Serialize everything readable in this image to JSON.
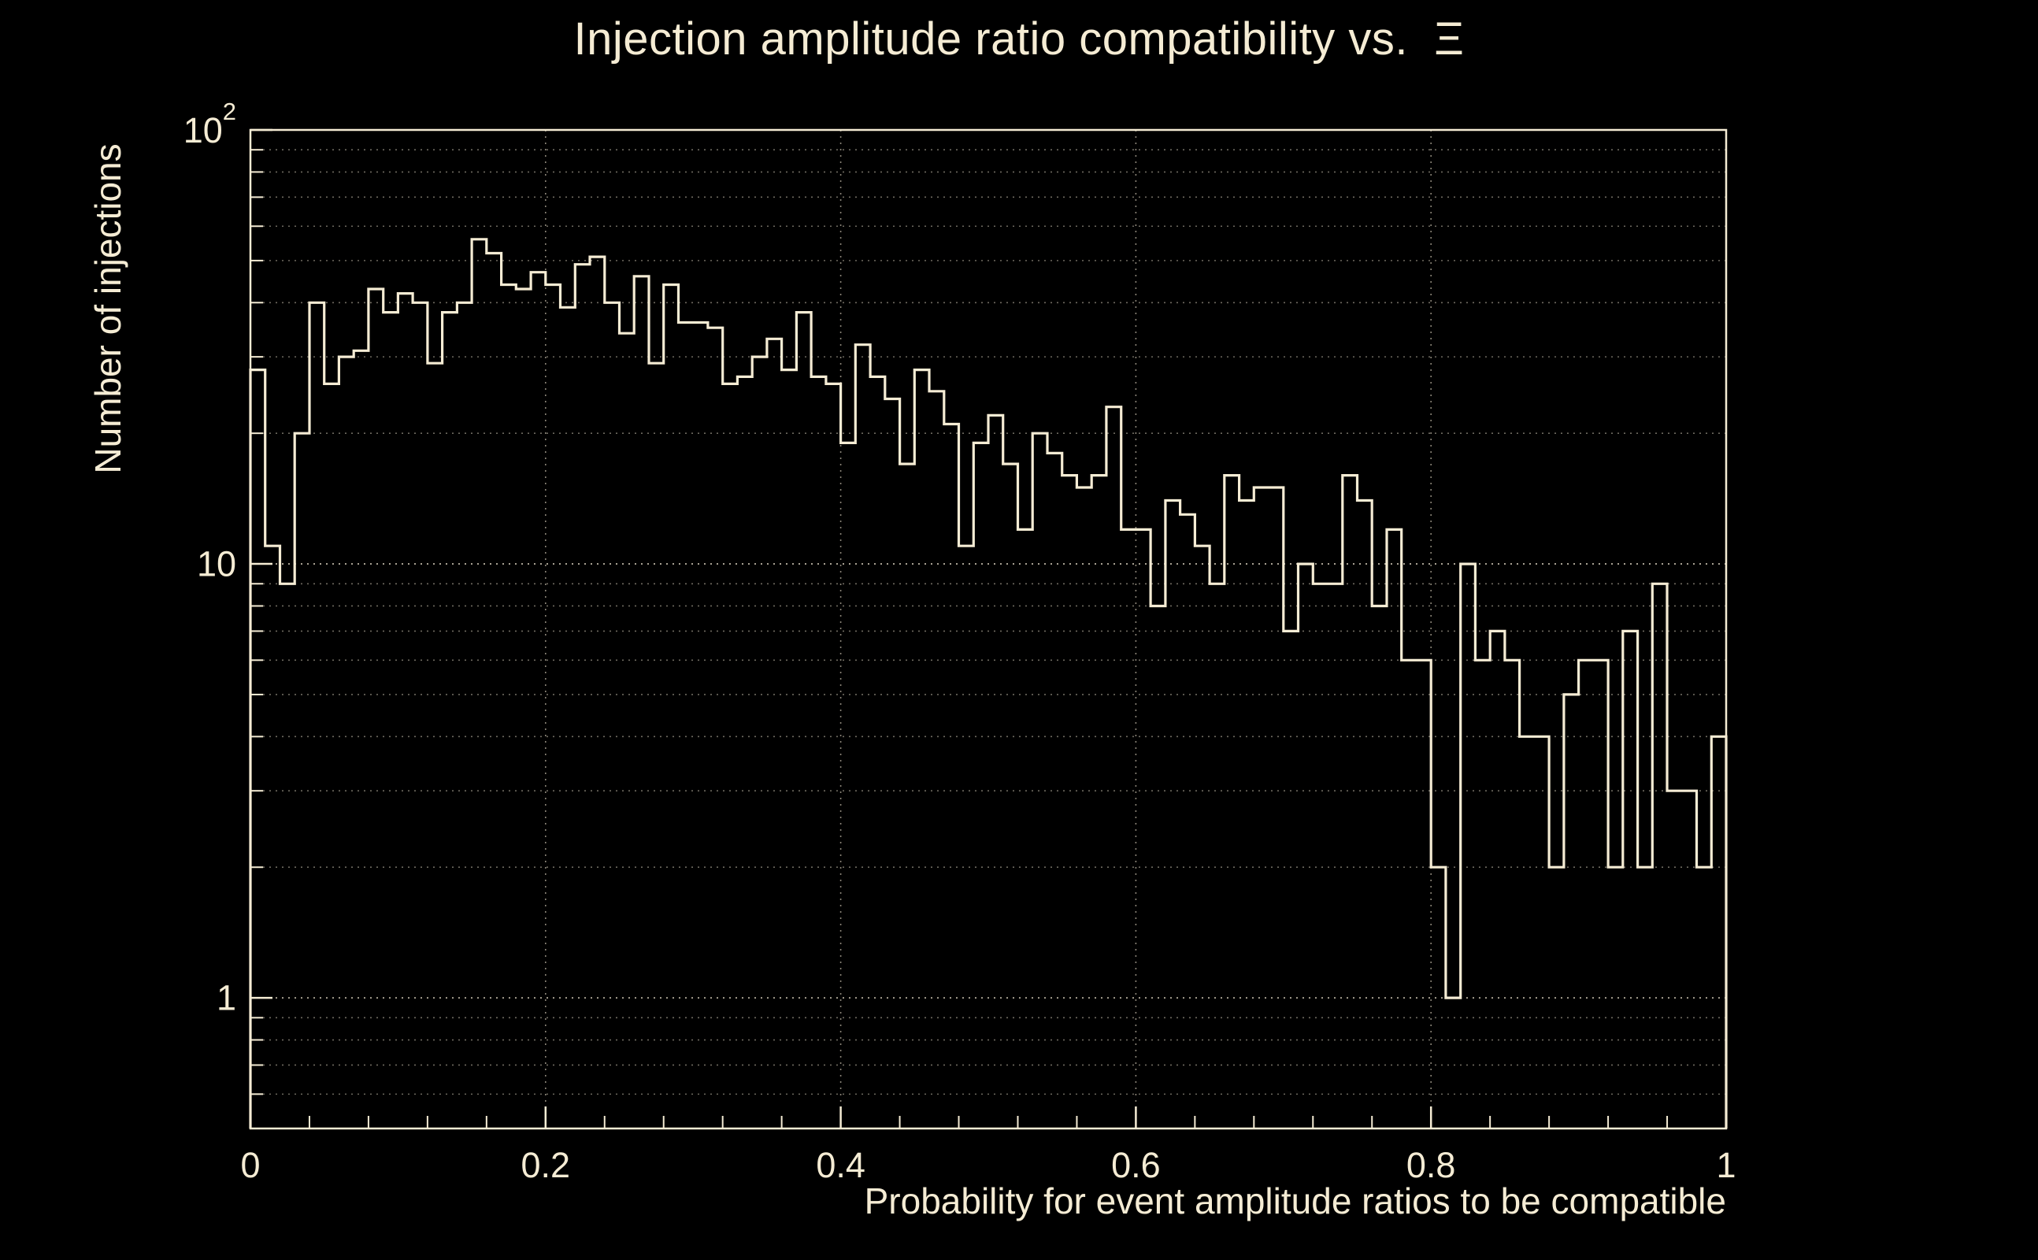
{
  "colors": {
    "background": "#000000",
    "foreground": "#f5ecd4",
    "grid_major": "#b5ae9e",
    "grid_minor": "#6e6a60",
    "grid_vertical": "#8a8477"
  },
  "chart_data": {
    "type": "bar",
    "subtype": "step-histogram",
    "title": "Injection amplitude ratio compatibility vs.  Ξ",
    "xlabel": "Probability for event amplitude ratios to be compatible",
    "ylabel": "Number of injections",
    "x_range": [
      0,
      1
    ],
    "bin_width": 0.01,
    "y_scale": "log",
    "ylim": [
      0.5,
      100
    ],
    "grid": true,
    "x_ticks": [
      {
        "value": 0,
        "label": "0"
      },
      {
        "value": 0.2,
        "label": "0.2"
      },
      {
        "value": 0.4,
        "label": "0.4"
      },
      {
        "value": 0.6,
        "label": "0.6"
      },
      {
        "value": 0.8,
        "label": "0.8"
      },
      {
        "value": 1,
        "label": "1"
      }
    ],
    "y_ticks": [
      {
        "value": 1,
        "label": "1"
      },
      {
        "value": 10,
        "label": "10"
      },
      {
        "value": 100,
        "label": "10",
        "exponent": "2"
      }
    ],
    "values": [
      28,
      11,
      9,
      20,
      40,
      26,
      30,
      31,
      43,
      38,
      42,
      40,
      29,
      38,
      40,
      56,
      52,
      44,
      43,
      47,
      44,
      39,
      49,
      51,
      40,
      34,
      46,
      29,
      44,
      36,
      36,
      35,
      26,
      27,
      30,
      33,
      28,
      38,
      27,
      26,
      19,
      32,
      27,
      24,
      17,
      28,
      25,
      21,
      11,
      19,
      22,
      17,
      12,
      20,
      18,
      16,
      15,
      16,
      23,
      12,
      12,
      8,
      14,
      13,
      11,
      9,
      16,
      14,
      15,
      15,
      7,
      10,
      9,
      9,
      16,
      14,
      8,
      12,
      6,
      6,
      2,
      1,
      10,
      6,
      7,
      6,
      4,
      4,
      2,
      5,
      6,
      6,
      2,
      7,
      2,
      9,
      3,
      3,
      2,
      4
    ]
  }
}
